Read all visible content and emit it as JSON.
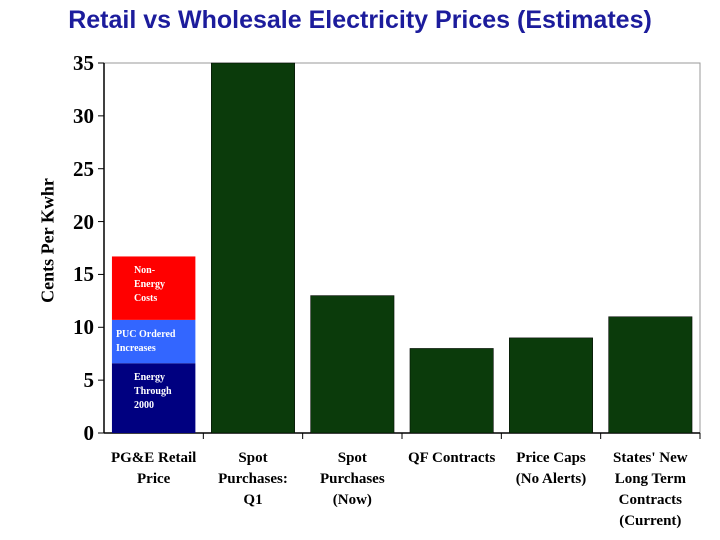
{
  "chart_data": {
    "type": "bar",
    "title": "Retail vs Wholesale Electricity Prices (Estimates)",
    "y_label": "Cents Per Kwhr",
    "categories": [
      "PG&E Retail\nPrice",
      "Spot\nPurchases:\nQ1",
      "Spot\nPurchases\n(Now)",
      "QF Contracts",
      "Price Caps\n(No Alerts)",
      "States' New\nLong Term\nContracts\n(Current)"
    ],
    "values": [
      null,
      35,
      13,
      8,
      9,
      11
    ],
    "color": "#0b3b0b",
    "series": [
      {
        "name": "Energy\nThrough\n2000",
        "color": "#000080",
        "values": [
          6.6,
          null,
          null,
          null,
          null,
          null
        ]
      },
      {
        "name": "PUC Ordered\nIncreases",
        "color": "#3366ff",
        "values": [
          4.1,
          null,
          null,
          null,
          null,
          null
        ]
      },
      {
        "name": "Non-\nEnergy\nCosts",
        "color": "#ff0000",
        "values": [
          6,
          null,
          null,
          null,
          null,
          null
        ]
      }
    ],
    "ylim": [
      0,
      35
    ],
    "yticks": [
      0,
      5,
      10,
      15,
      20,
      25,
      30,
      35
    ],
    "grid": false
  }
}
